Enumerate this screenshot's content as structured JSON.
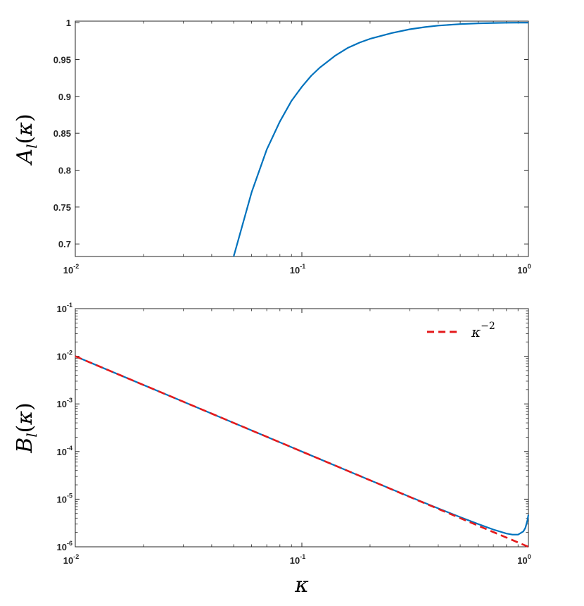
{
  "chart_data": [
    {
      "type": "line",
      "ylabel": {
        "main": "A",
        "sub": "l",
        "arg": "κ"
      },
      "xscale": "log",
      "yscale": "linear",
      "xlim": [
        0.01,
        1
      ],
      "ylim": [
        0.683,
        1.002
      ],
      "xticks": [
        {
          "base": "10",
          "exp": "-2",
          "value": 0.01
        },
        {
          "base": "10",
          "exp": "-1",
          "value": 0.1
        },
        {
          "base": "10",
          "exp": "0",
          "value": 1
        }
      ],
      "yticks": [
        {
          "label": "0.7",
          "value": 0.7
        },
        {
          "label": "0.75",
          "value": 0.75
        },
        {
          "label": "0.8",
          "value": 0.8
        },
        {
          "label": "0.85",
          "value": 0.85
        },
        {
          "label": "0.9",
          "value": 0.9
        },
        {
          "label": "0.95",
          "value": 0.95
        },
        {
          "label": "1",
          "value": 1.0
        }
      ],
      "grid": false,
      "series": [
        {
          "color": "#0072bd",
          "style": "solid",
          "x": [
            0.05,
            0.06,
            0.07,
            0.08,
            0.09,
            0.1,
            0.11,
            0.12,
            0.14,
            0.16,
            0.18,
            0.2,
            0.25,
            0.3,
            0.35,
            0.4,
            0.5,
            0.6,
            0.7,
            0.8,
            0.9,
            1.0
          ],
          "y": [
            0.683,
            0.77,
            0.828,
            0.866,
            0.894,
            0.913,
            0.928,
            0.939,
            0.955,
            0.966,
            0.973,
            0.978,
            0.986,
            0.991,
            0.994,
            0.996,
            0.998,
            0.999,
            0.9995,
            0.9998,
            0.9999,
            1.0
          ]
        }
      ]
    },
    {
      "type": "line",
      "ylabel": {
        "main": "B",
        "sub": "l",
        "arg": "κ"
      },
      "xlabel": "κ",
      "xscale": "log",
      "yscale": "log",
      "xlim": [
        0.01,
        1
      ],
      "ylim": [
        1e-06,
        0.1
      ],
      "xticks": [
        {
          "base": "10",
          "exp": "-2",
          "value": 0.01
        },
        {
          "base": "10",
          "exp": "-1",
          "value": 0.1
        },
        {
          "base": "10",
          "exp": "0",
          "value": 1
        }
      ],
      "yticks": [
        {
          "base": "10",
          "exp": "-6",
          "value": 1e-06
        },
        {
          "base": "10",
          "exp": "-5",
          "value": 1e-05
        },
        {
          "base": "10",
          "exp": "-4",
          "value": 0.0001
        },
        {
          "base": "10",
          "exp": "-3",
          "value": 0.001
        },
        {
          "base": "10",
          "exp": "-2",
          "value": 0.01
        },
        {
          "base": "10",
          "exp": "-1",
          "value": 0.1
        }
      ],
      "legend": {
        "placement": "top-right",
        "entries": [
          {
            "base": "κ",
            "exp": "−2",
            "color": "#e41a1c",
            "style": "dashed"
          }
        ]
      },
      "grid": false,
      "series": [
        {
          "color": "#0072bd",
          "style": "solid",
          "x": [
            0.01,
            0.02,
            0.05,
            0.1,
            0.2,
            0.3,
            0.4,
            0.5,
            0.6,
            0.7,
            0.8,
            0.85,
            0.9,
            0.95,
            0.97,
            0.99,
            1.0
          ],
          "y": [
            0.01,
            0.0025,
            0.0004,
            0.0001,
            2.5e-05,
            1.12e-05,
            6.4e-06,
            4.2e-06,
            3e-06,
            2.3e-06,
            1.9e-06,
            1.8e-06,
            1.8e-06,
            2.1e-06,
            2.5e-06,
            3.6e-06,
            4.7e-06
          ]
        },
        {
          "name": "κ^−2",
          "color": "#e41a1c",
          "style": "dashed",
          "x": [
            0.01,
            0.03,
            0.1,
            0.3,
            1.0
          ],
          "y": [
            0.01,
            0.00111,
            0.0001,
            1.11e-05,
            1e-06
          ]
        }
      ]
    }
  ]
}
